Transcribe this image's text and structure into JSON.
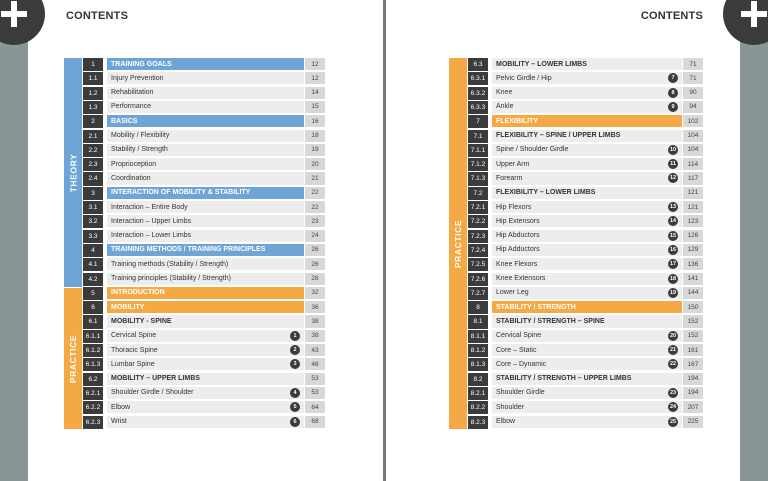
{
  "header": {
    "title": "CONTENTS"
  },
  "colors": {
    "theory": "#6fa5d6",
    "practice": "#f5a944",
    "dark": "#3b3b3b"
  },
  "left": {
    "theory_label": "THEORY",
    "practice_label": "PRACTICE",
    "rows": [
      {
        "num": "1",
        "title": "TRAINING GOALS",
        "page": "12",
        "style": "hl-blue"
      },
      {
        "num": "1.1",
        "title": "Injury Prevention",
        "page": "12"
      },
      {
        "num": "1.2",
        "title": "Rehabilitation",
        "page": "14"
      },
      {
        "num": "1.3",
        "title": "Performance",
        "page": "15"
      },
      {
        "num": "2",
        "title": "BASICS",
        "page": "16",
        "style": "hl-blue"
      },
      {
        "num": "2.1",
        "title": "Mobility / Flexibility",
        "page": "18"
      },
      {
        "num": "2.2",
        "title": "Stability / Strength",
        "page": "19"
      },
      {
        "num": "2.3",
        "title": "Proprioception",
        "page": "20"
      },
      {
        "num": "2.4",
        "title": "Coordination",
        "page": "21"
      },
      {
        "num": "3",
        "title": "INTERACTION OF MOBILITY & STABILITY",
        "page": "22",
        "style": "hl-blue"
      },
      {
        "num": "3.1",
        "title": "Interaction – Entire Body",
        "page": "22"
      },
      {
        "num": "3.2",
        "title": "Interaction – Upper Limbs",
        "page": "23"
      },
      {
        "num": "3.3",
        "title": "Interaction – Lower Limbs",
        "page": "24"
      },
      {
        "num": "4",
        "title": "TRAINING METHODS / TRAINING PRINCIPLES",
        "page": "26",
        "style": "hl-blue"
      },
      {
        "num": "4.1",
        "title": "Training methods (Stability / Strength)",
        "page": "26"
      },
      {
        "num": "4.2",
        "title": "Training principles (Stability / Strength)",
        "page": "28"
      },
      {
        "num": "5",
        "title": "INTRODUCTION",
        "page": "32",
        "style": "hl-orange"
      },
      {
        "num": "6",
        "title": "MOBILITY",
        "page": "36",
        "style": "hl-orange"
      },
      {
        "num": "6.1",
        "title": "MOBILITY - SPINE",
        "page": "38",
        "style": "bold"
      },
      {
        "num": "6.1.1",
        "title": "Cervical Spine",
        "page": "38",
        "badge": "1"
      },
      {
        "num": "6.1.2",
        "title": "Thoracic Spine",
        "page": "43",
        "badge": "2"
      },
      {
        "num": "6.1.3",
        "title": "Lumbar Spine",
        "page": "48",
        "badge": "3"
      },
      {
        "num": "6.2",
        "title": "MOBILITY – UPPER LIMBS",
        "page": "53",
        "style": "bold"
      },
      {
        "num": "6.2.1",
        "title": "Shoulder Girdle / Shoulder",
        "page": "53",
        "badge": "4"
      },
      {
        "num": "6.2.2",
        "title": "Elbow",
        "page": "64",
        "badge": "5"
      },
      {
        "num": "6.2.3",
        "title": "Wrist",
        "page": "68",
        "badge": "6"
      }
    ]
  },
  "right": {
    "practice_label": "PRACTICE",
    "rows": [
      {
        "num": "6.3",
        "title": "MOBILITY – LOWER LIMBS",
        "page": "71",
        "style": "bold"
      },
      {
        "num": "6.3.1",
        "title": "Pelvic Girdle / Hip",
        "page": "71",
        "badge": "7"
      },
      {
        "num": "6.3.2",
        "title": "Knee",
        "page": "90",
        "badge": "8"
      },
      {
        "num": "6.3.3",
        "title": "Ankle",
        "page": "94",
        "badge": "9"
      },
      {
        "num": "7",
        "title": "FLEXIBILITY",
        "page": "102",
        "style": "hl-orange"
      },
      {
        "num": "7.1",
        "title": "FLEXIBILITY – SPINE / UPPER LIMBS",
        "page": "104",
        "style": "bold"
      },
      {
        "num": "7.1.1",
        "title": "Spine / Shoulder Girdle",
        "page": "104",
        "badge": "10"
      },
      {
        "num": "7.1.2",
        "title": "Upper Arm",
        "page": "114",
        "badge": "11"
      },
      {
        "num": "7.1.3",
        "title": "Forearm",
        "page": "117",
        "badge": "12"
      },
      {
        "num": "7.2",
        "title": "FLEXIBILITY – LOWER LIMBS",
        "page": "121",
        "style": "bold"
      },
      {
        "num": "7.2.1",
        "title": "Hip Flexors",
        "page": "121",
        "badge": "13"
      },
      {
        "num": "7.2.2",
        "title": "Hip Extensors",
        "page": "123",
        "badge": "14"
      },
      {
        "num": "7.2.3",
        "title": "Hip Abductors",
        "page": "126",
        "badge": "15"
      },
      {
        "num": "7.2.4",
        "title": "Hip Adductors",
        "page": "129",
        "badge": "16"
      },
      {
        "num": "7.2.5",
        "title": "Knee Flexors",
        "page": "136",
        "badge": "17"
      },
      {
        "num": "7.2.6",
        "title": "Knee Extensors",
        "page": "141",
        "badge": "18"
      },
      {
        "num": "7.2.7",
        "title": "Lower Leg",
        "page": "144",
        "badge": "19"
      },
      {
        "num": "8",
        "title": "STABILITY / STRENGTH",
        "page": "150",
        "style": "hl-orange"
      },
      {
        "num": "8.1",
        "title": "STABILITY / STRENGTH – SPINE",
        "page": "152",
        "style": "bold"
      },
      {
        "num": "8.1.1",
        "title": "Cervical Spine",
        "page": "152",
        "badge": "20"
      },
      {
        "num": "8.1.2",
        "title": "Core – Static",
        "page": "161",
        "badge": "21"
      },
      {
        "num": "8.1.3",
        "title": "Core – Dynamic",
        "page": "167",
        "badge": "22"
      },
      {
        "num": "8.2",
        "title": "STABILITY / STRENGTH – UPPER LIMBS",
        "page": "194",
        "style": "bold"
      },
      {
        "num": "8.2.1",
        "title": "Shoulder Girdle",
        "page": "194",
        "badge": "23"
      },
      {
        "num": "8.2.2",
        "title": "Shoulder",
        "page": "207",
        "badge": "24"
      },
      {
        "num": "8.2.3",
        "title": "Elbow",
        "page": "225",
        "badge": "25"
      }
    ]
  }
}
